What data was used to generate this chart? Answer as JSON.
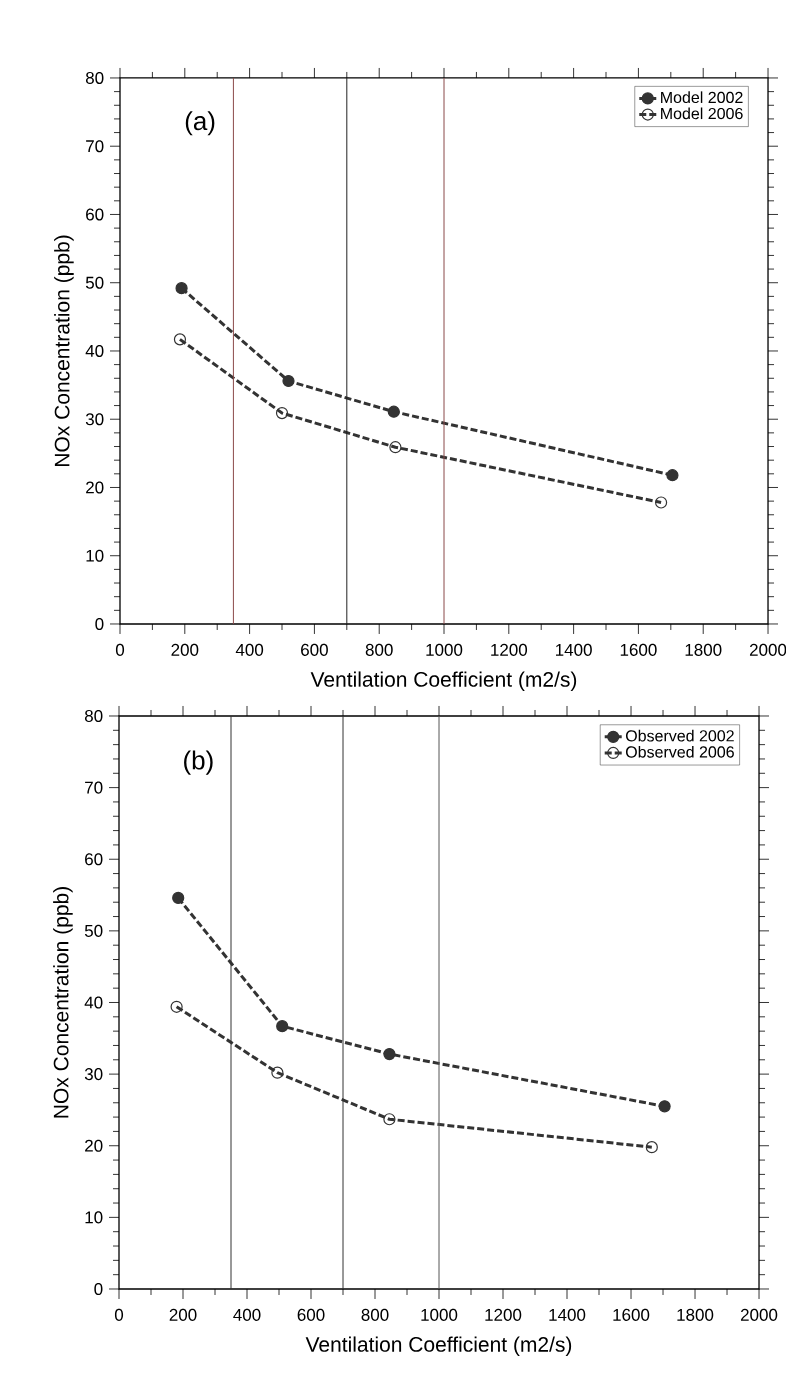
{
  "chart_data": [
    {
      "type": "line",
      "xlabel": "Ventilation Coefficient (m2/s)",
      "ylabel": "NOx Concentration (ppb)",
      "annotations": [
        "(a)"
      ],
      "series": [
        {
          "name": "Model 2002",
          "color": "#333333",
          "x": [
            190,
            520,
            845,
            1705
          ],
          "values": [
            49.2,
            35.6,
            31.1,
            21.8
          ]
        },
        {
          "name": "Model 2006",
          "color": "#333333",
          "x": [
            185,
            500,
            850,
            1670
          ],
          "values": [
            41.7,
            30.9,
            25.9,
            17.8
          ]
        }
      ],
      "xlim": [
        0,
        2000
      ],
      "xticks": [
        0,
        200,
        400,
        600,
        800,
        1000,
        1200,
        1400,
        1600,
        1800,
        2000
      ],
      "ylim": [
        0,
        80
      ],
      "yticks": [
        0,
        10,
        20,
        30,
        40,
        50,
        60,
        70,
        80
      ],
      "ref_lines": [
        {
          "axis": "x",
          "value": 350,
          "color": "#8b4a4a"
        },
        {
          "axis": "x",
          "value": 700,
          "color": "#222222"
        },
        {
          "axis": "x",
          "value": 1000,
          "color": "#8b4a4a"
        }
      ],
      "legend": "top right",
      "marker": "circle",
      "line_style": "dashed",
      "grid": false
    },
    {
      "type": "line",
      "xlabel": "Ventilation Coefficient (m2/s)",
      "ylabel": "NOx Concentration (ppb)",
      "annotations": [
        "(b)"
      ],
      "series": [
        {
          "name": "Observed 2002",
          "color": "#333333",
          "x": [
            185,
            510,
            845,
            1705
          ],
          "values": [
            54.6,
            36.7,
            32.8,
            25.5
          ]
        },
        {
          "name": "Observed 2006",
          "color": "#333333",
          "x": [
            180,
            495,
            845,
            1665
          ],
          "values": [
            39.4,
            30.2,
            23.7,
            19.8
          ]
        }
      ],
      "xlim": [
        0,
        2000
      ],
      "xticks": [
        0,
        200,
        400,
        600,
        800,
        1000,
        1200,
        1400,
        1600,
        1800,
        2000
      ],
      "ylim": [
        0,
        80
      ],
      "yticks": [
        0,
        10,
        20,
        30,
        40,
        50,
        60,
        70,
        80
      ],
      "ref_lines": [
        {
          "axis": "x",
          "value": 350,
          "color": "#333333"
        },
        {
          "axis": "x",
          "value": 700,
          "color": "#333333"
        },
        {
          "axis": "x",
          "value": 1000,
          "color": "#555555"
        }
      ],
      "legend": "top right",
      "marker": "circle",
      "line_style": "dashed",
      "grid": false
    }
  ]
}
